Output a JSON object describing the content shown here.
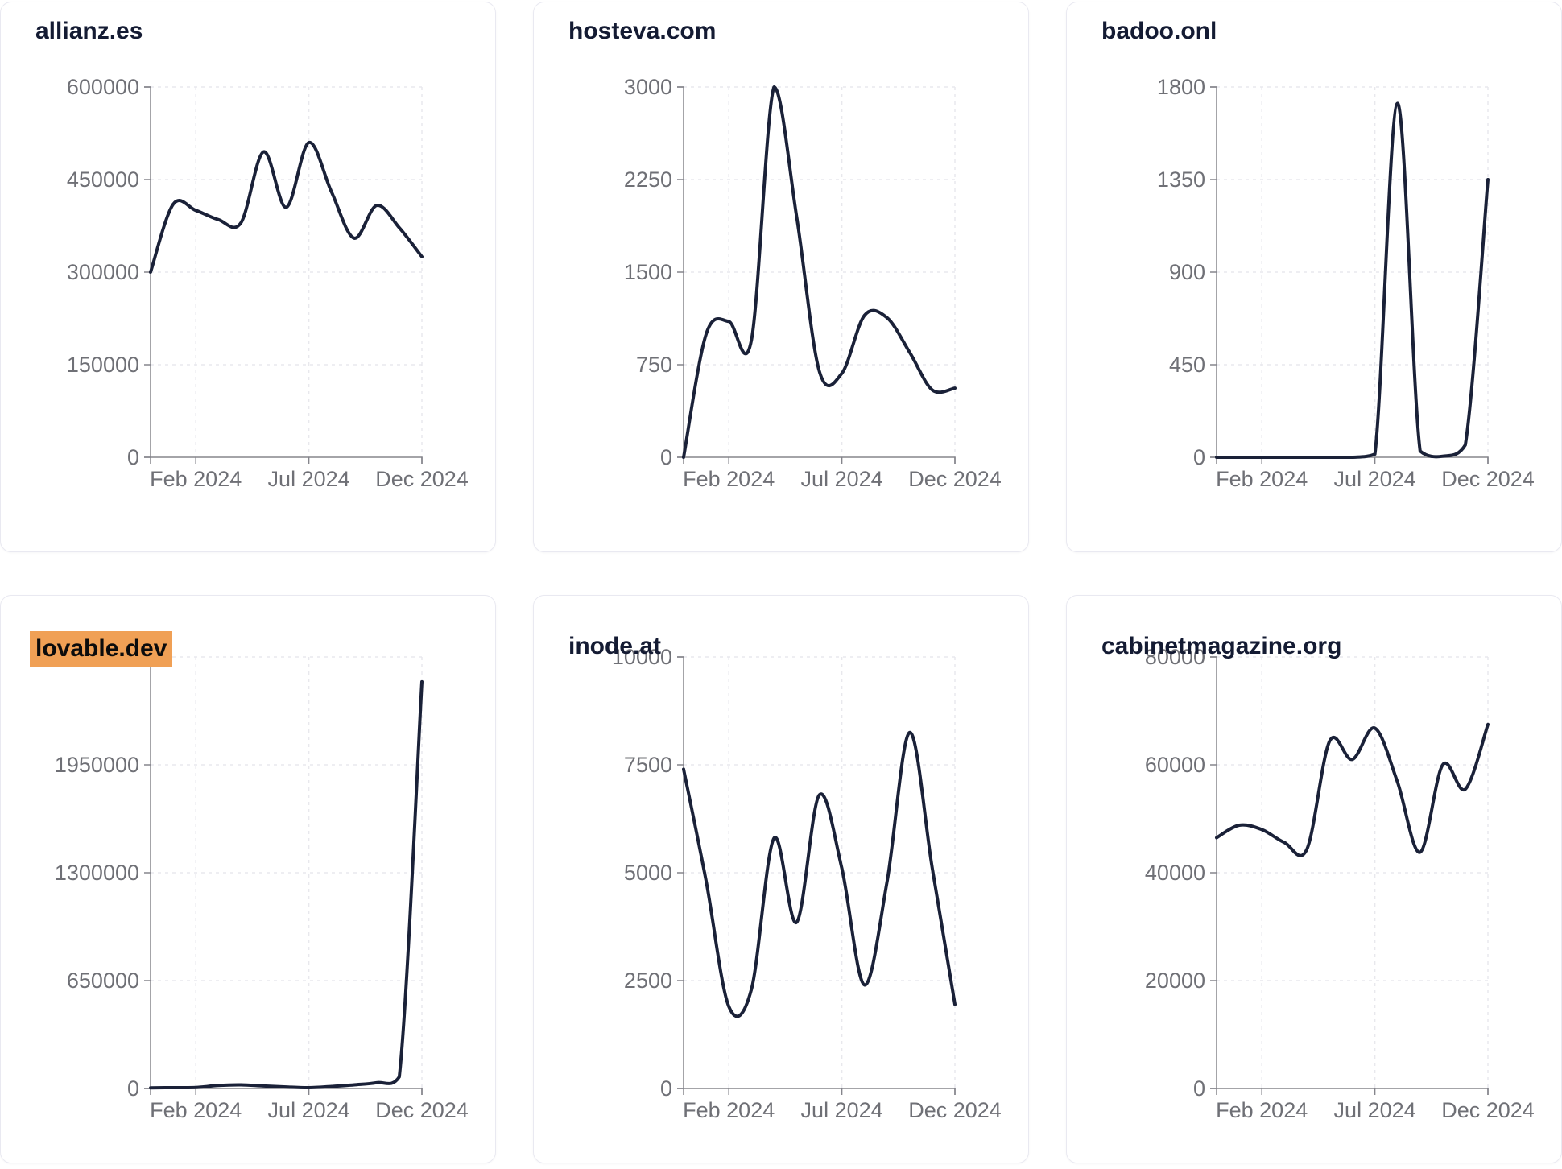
{
  "page": {
    "background_color": "#ffffff",
    "card_background": "#ffffff",
    "card_border_color": "#e9e9f1"
  },
  "style": {
    "line_color": "#1a2138",
    "line_width": 4,
    "axis_color": "#85858c",
    "grid_color": "#e8e8ed",
    "tick_label_color": "#6f7076",
    "title_color": "#141b33",
    "highlight_color": "#f0a055",
    "highlight_text_color": "#0c0c0c"
  },
  "chart_data": [
    {
      "type": "line",
      "title": "allianz.es",
      "highlighted": false,
      "x": [
        "Dec 2023",
        "Jan 2024",
        "Feb 2024",
        "Mar 2024",
        "Apr 2024",
        "May 2024",
        "Jun 2024",
        "Jul 2024",
        "Aug 2024",
        "Sep 2024",
        "Oct 2024",
        "Nov 2024",
        "Dec 2024"
      ],
      "values": [
        300000,
        410000,
        400000,
        385000,
        380000,
        495000,
        405000,
        510000,
        430000,
        355000,
        408000,
        372000,
        325000
      ],
      "ylim": [
        0,
        600000
      ],
      "yticks": [
        0,
        150000,
        300000,
        450000,
        600000
      ],
      "xtick_labels": [
        "Feb 2024",
        "Jul 2024",
        "Dec 2024"
      ],
      "xtick_indices": [
        2,
        7,
        12
      ],
      "grid": "dashed",
      "legend": "none"
    },
    {
      "type": "line",
      "title": "hosteva.com",
      "highlighted": false,
      "x": [
        "Dec 2023",
        "Jan 2024",
        "Feb 2024",
        "Mar 2024",
        "Apr 2024",
        "May 2024",
        "Jun 2024",
        "Jul 2024",
        "Aug 2024",
        "Sep 2024",
        "Oct 2024",
        "Nov 2024",
        "Dec 2024"
      ],
      "values": [
        0,
        1000,
        1100,
        950,
        3000,
        1950,
        700,
        680,
        1150,
        1130,
        850,
        545,
        560
      ],
      "ylim": [
        0,
        3000
      ],
      "yticks": [
        0,
        750,
        1500,
        2250,
        3000
      ],
      "xtick_labels": [
        "Feb 2024",
        "Jul 2024",
        "Dec 2024"
      ],
      "xtick_indices": [
        2,
        7,
        12
      ],
      "grid": "dashed",
      "legend": "none"
    },
    {
      "type": "line",
      "title": "badoo.onl",
      "highlighted": false,
      "x": [
        "Dec 2023",
        "Jan 2024",
        "Feb 2024",
        "Mar 2024",
        "Apr 2024",
        "May 2024",
        "Jun 2024",
        "Jul 2024",
        "Aug 2024",
        "Sep 2024",
        "Oct 2024",
        "Nov 2024",
        "Dec 2024"
      ],
      "values": [
        0,
        0,
        0,
        0,
        0,
        0,
        0,
        15,
        1720,
        30,
        5,
        60,
        1350
      ],
      "ylim": [
        0,
        1800
      ],
      "yticks": [
        0,
        450,
        900,
        1350,
        1800
      ],
      "xtick_labels": [
        "Feb 2024",
        "Jul 2024",
        "Dec 2024"
      ],
      "xtick_indices": [
        2,
        7,
        12
      ],
      "grid": "dashed",
      "legend": "none"
    },
    {
      "type": "line",
      "title": "lovable.dev",
      "highlighted": true,
      "x": [
        "Dec 2023",
        "Jan 2024",
        "Feb 2024",
        "Mar 2024",
        "Apr 2024",
        "May 2024",
        "Jun 2024",
        "Jul 2024",
        "Aug 2024",
        "Sep 2024",
        "Oct 2024",
        "Nov 2024",
        "Dec 2024"
      ],
      "values": [
        4000,
        5000,
        6000,
        18000,
        22000,
        15000,
        9000,
        5000,
        12000,
        22000,
        35000,
        70000,
        2450000
      ],
      "ylim": [
        0,
        2600000
      ],
      "yticks": [
        0,
        650000,
        1300000,
        1950000,
        2600000
      ],
      "xtick_labels": [
        "Feb 2024",
        "Jul 2024",
        "Dec 2024"
      ],
      "xtick_indices": [
        2,
        7,
        12
      ],
      "grid": "dashed",
      "legend": "none"
    },
    {
      "type": "line",
      "title": "inode.at",
      "highlighted": false,
      "x": [
        "Dec 2023",
        "Jan 2024",
        "Feb 2024",
        "Mar 2024",
        "Apr 2024",
        "May 2024",
        "Jun 2024",
        "Jul 2024",
        "Aug 2024",
        "Sep 2024",
        "Oct 2024",
        "Nov 2024",
        "Dec 2024"
      ],
      "values": [
        7400,
        4800,
        1900,
        2300,
        5800,
        3850,
        6800,
        5100,
        2400,
        4800,
        8250,
        5100,
        1950
      ],
      "ylim": [
        0,
        10000
      ],
      "yticks": [
        0,
        2500,
        5000,
        7500,
        10000
      ],
      "xtick_labels": [
        "Feb 2024",
        "Jul 2024",
        "Dec 2024"
      ],
      "xtick_indices": [
        2,
        7,
        12
      ],
      "grid": "dashed",
      "legend": "none"
    },
    {
      "type": "line",
      "title": "cabinetmagazine.org",
      "highlighted": false,
      "x": [
        "Dec 2023",
        "Jan 2024",
        "Feb 2024",
        "Mar 2024",
        "Apr 2024",
        "May 2024",
        "Jun 2024",
        "Jul 2024",
        "Aug 2024",
        "Sep 2024",
        "Oct 2024",
        "Nov 2024",
        "Dec 2024"
      ],
      "values": [
        46500,
        48800,
        48000,
        45600,
        44400,
        64400,
        61000,
        66800,
        56800,
        43800,
        60000,
        55500,
        67500
      ],
      "ylim": [
        0,
        80000
      ],
      "yticks": [
        0,
        20000,
        40000,
        60000,
        80000
      ],
      "xtick_labels": [
        "Feb 2024",
        "Jul 2024",
        "Dec 2024"
      ],
      "xtick_indices": [
        2,
        7,
        12
      ],
      "grid": "dashed",
      "legend": "none"
    }
  ]
}
